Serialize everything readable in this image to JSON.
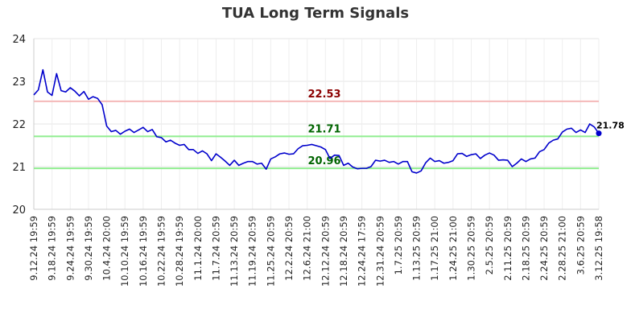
{
  "chart_data": {
    "type": "line",
    "title": "TUA Long Term Signals",
    "xlabel": "",
    "ylabel": "",
    "ylim": [
      20,
      24
    ],
    "yticks": [
      "20",
      "21",
      "22",
      "23",
      "24"
    ],
    "xtick_labels": [
      "9.12.24 19:59",
      "9.18.24 19:59",
      "9.24.24 19:59",
      "9.30.24 19:59",
      "10.4.24 20:00",
      "10.10.24 19:59",
      "10.16.24 19:59",
      "10.22.24 19:59",
      "10.28.24 19:59",
      "11.1.24 20:00",
      "11.7.24 20:59",
      "11.13.24 20:59",
      "11.19.24 20:59",
      "11.25.24 20:59",
      "12.2.24 20:59",
      "12.6.24 21:00",
      "12.12.24 20:59",
      "12.18.24 20:59",
      "12.24.24 17:59",
      "12.31.24 20:59",
      "1.7.25 20:59",
      "1.13.25 20:59",
      "1.17.25 21:00",
      "1.24.25 21:00",
      "1.30.25 20:59",
      "2.5.25 20:59",
      "2.11.25 20:59",
      "2.18.25 20:59",
      "2.24.25 20:59",
      "2.28.25 21:00",
      "3.6.25 20:59",
      "3.12.25 19:58"
    ],
    "grid": true,
    "series": [
      {
        "color": "#0000cc",
        "values": [
          22.68,
          22.8,
          23.27,
          22.75,
          22.67,
          23.18,
          22.78,
          22.75,
          22.85,
          22.77,
          22.66,
          22.76,
          22.58,
          22.64,
          22.6,
          22.45,
          21.95,
          21.82,
          21.85,
          21.76,
          21.83,
          21.88,
          21.8,
          21.86,
          21.92,
          21.82,
          21.87,
          21.7,
          21.68,
          21.58,
          21.62,
          21.55,
          21.5,
          21.52,
          21.4,
          21.4,
          21.31,
          21.37,
          21.3,
          21.14,
          21.3,
          21.22,
          21.13,
          21.03,
          21.15,
          21.03,
          21.08,
          21.12,
          21.12,
          21.06,
          21.08,
          20.94,
          21.18,
          21.23,
          21.3,
          21.32,
          21.29,
          21.3,
          21.42,
          21.49,
          21.5,
          21.52,
          21.49,
          21.46,
          21.4,
          21.19,
          21.27,
          21.26,
          21.03,
          21.08,
          20.99,
          20.95,
          20.96,
          20.96,
          21.0,
          21.15,
          21.13,
          21.15,
          21.1,
          21.12,
          21.06,
          21.12,
          21.12,
          20.88,
          20.85,
          20.9,
          21.09,
          21.2,
          21.12,
          21.14,
          21.08,
          21.1,
          21.14,
          21.3,
          21.31,
          21.24,
          21.28,
          21.3,
          21.19,
          21.27,
          21.32,
          21.27,
          21.15,
          21.16,
          21.15,
          21.0,
          21.08,
          21.18,
          21.12,
          21.18,
          21.2,
          21.35,
          21.4,
          21.55,
          21.62,
          21.65,
          21.81,
          21.88,
          21.9,
          21.8,
          21.86,
          21.8,
          22.0,
          21.93,
          21.78
        ]
      }
    ],
    "reference_lines": [
      {
        "value": 22.53,
        "label": "22.53",
        "line_color": "#f4b8b8",
        "label_color": "#8b0000"
      },
      {
        "value": 21.71,
        "label": "21.71",
        "line_color": "#90ee90",
        "label_color": "#006400"
      },
      {
        "value": 20.96,
        "label": "20.96",
        "line_color": "#90ee90",
        "label_color": "#006400"
      }
    ],
    "last_value_label": "21.78",
    "last_point_color": "#0000cc"
  }
}
